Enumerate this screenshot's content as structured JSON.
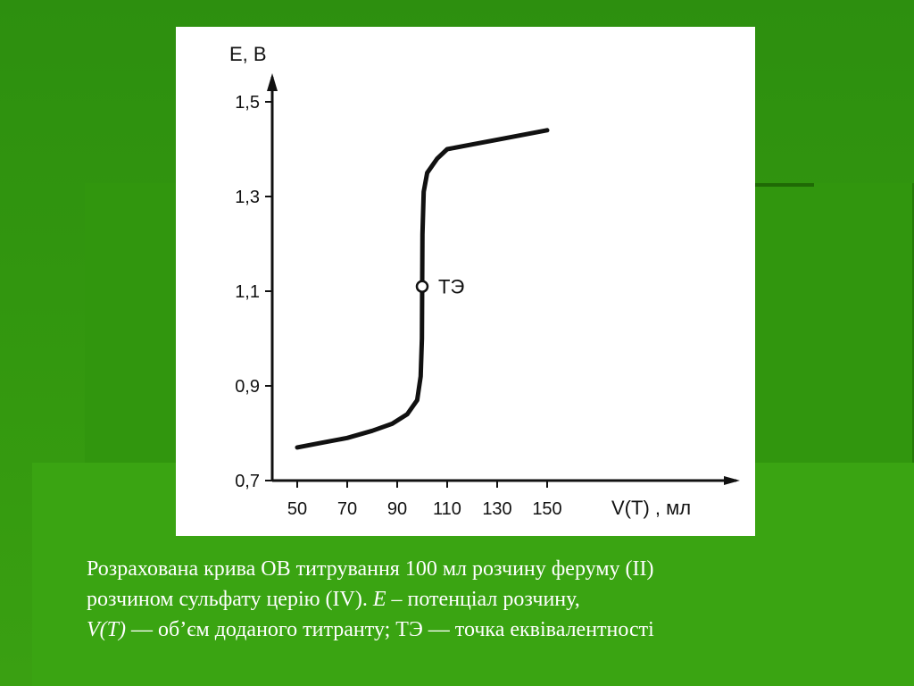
{
  "chart_data": {
    "type": "line",
    "ylabel": "E, В",
    "xlabel": "V(T) , мл",
    "xlim": [
      40,
      170
    ],
    "ylim": [
      0.7,
      1.6
    ],
    "x_ticks": [
      50,
      70,
      90,
      110,
      130,
      150
    ],
    "x_tick_labels": [
      "50",
      "70",
      "90",
      "110",
      "130",
      "150"
    ],
    "y_ticks": [
      0.7,
      0.9,
      1.1,
      1.3,
      1.5
    ],
    "y_tick_labels": [
      "0,7",
      "0,9",
      "1,1",
      "1,3",
      "1,5"
    ],
    "series": [
      {
        "x": [
          50,
          60,
          70,
          80,
          88,
          94,
          98,
          99.4,
          99.9,
          100,
          100.1,
          100.6,
          102,
          106,
          110,
          120,
          130,
          150
        ],
        "y": [
          0.77,
          0.78,
          0.79,
          0.805,
          0.82,
          0.84,
          0.87,
          0.92,
          1.0,
          1.11,
          1.22,
          1.31,
          1.35,
          1.38,
          1.4,
          1.41,
          1.42,
          1.44
        ]
      }
    ],
    "annotations": [
      {
        "text": "ТЭ",
        "x": 100,
        "y": 1.11
      }
    ]
  },
  "caption": {
    "line1": "Розрахована крива ОВ титрування 100 мл розчину феруму (II)",
    "line2_a": "розчином  сульфату церію (IV).  ",
    "line2_e": "E",
    "line2_b": " – потенціал розчину,",
    "line3_v": "V(T)",
    "line3_b": " — об’єм доданого  титранту; ТЭ — точка  еквівалентності"
  }
}
